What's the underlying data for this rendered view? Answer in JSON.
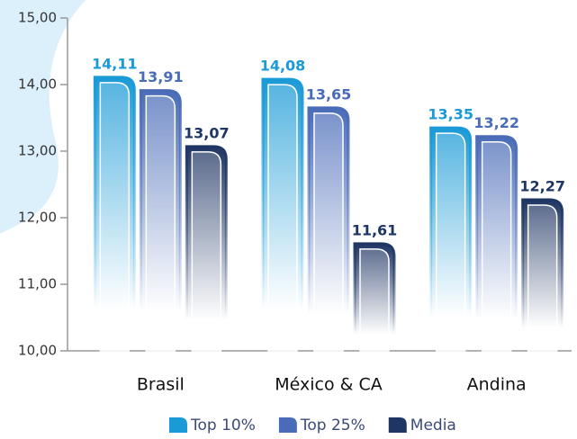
{
  "chart_data": {
    "type": "bar",
    "categories": [
      "Brasil",
      "México & CA",
      "Andina"
    ],
    "series": [
      {
        "name": "Top 10%",
        "color": "#1a9ad6",
        "values": [
          14.11,
          14.08,
          13.35
        ],
        "value_labels": [
          "14,11",
          "14,08",
          "13,35"
        ]
      },
      {
        "name": "Top 25%",
        "color": "#4a6cb8",
        "values": [
          13.91,
          13.65,
          13.22
        ],
        "value_labels": [
          "13,91",
          "13,65",
          "13,22"
        ]
      },
      {
        "name": "Media",
        "color": "#1f3563",
        "values": [
          13.07,
          11.61,
          12.27
        ],
        "value_labels": [
          "13,07",
          "11,61",
          "12,27"
        ]
      }
    ],
    "ylim": [
      10,
      15
    ],
    "yticks": [
      {
        "value": 10,
        "label": "10,00"
      },
      {
        "value": 11,
        "label": "11,00"
      },
      {
        "value": 12,
        "label": "12,00"
      },
      {
        "value": 13,
        "label": "13,00"
      },
      {
        "value": 14,
        "label": "14,00"
      },
      {
        "value": 15,
        "label": "15,00"
      }
    ],
    "legend": "bottom"
  }
}
